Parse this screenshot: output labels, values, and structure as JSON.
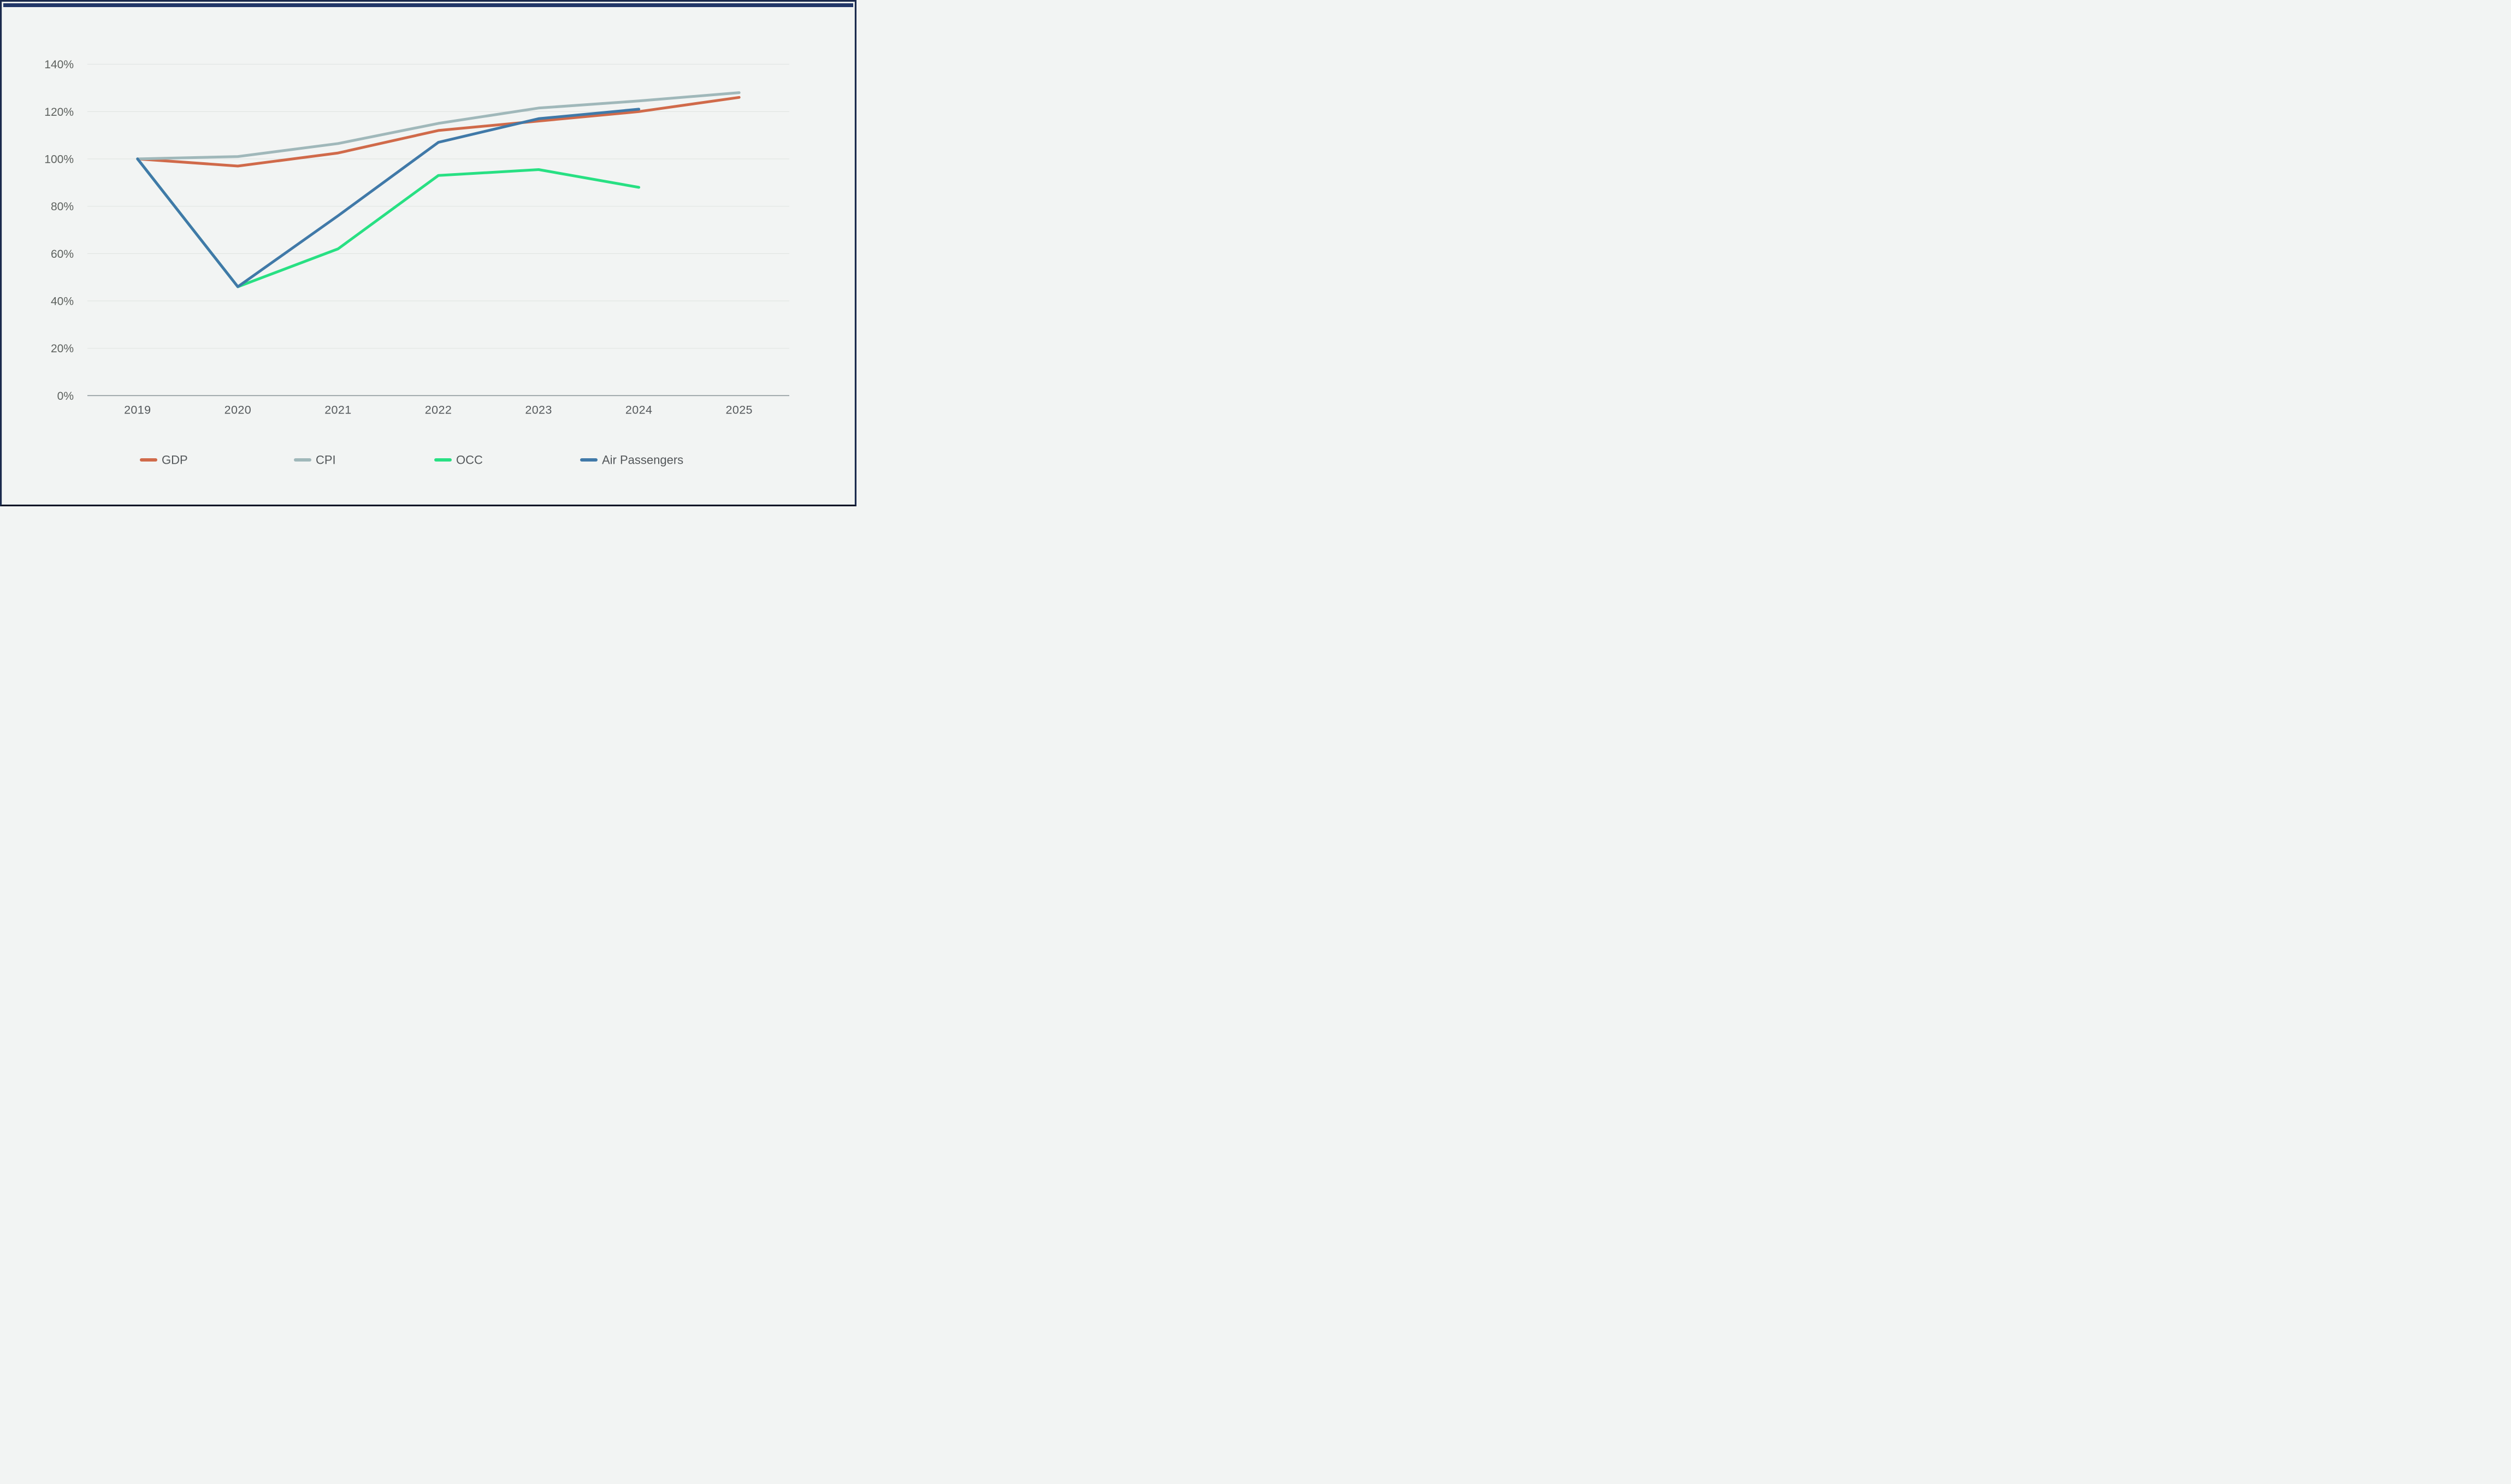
{
  "frame": {
    "top_bar_color": "#223768",
    "border_color": "#1b2a4d",
    "background_color": "#f2f4f3",
    "gridline_color": "#e0e4e2",
    "axis_line_color": "#8e989b"
  },
  "chart_data": {
    "type": "line",
    "title": "",
    "xlabel": "",
    "ylabel": "",
    "categories": [
      "2019",
      "2020",
      "2021",
      "2022",
      "2023",
      "2024",
      "2025"
    ],
    "series": [
      {
        "name": "GDP",
        "color": "#d06a4a",
        "values": [
          100,
          97,
          102.5,
          112,
          116,
          120,
          126
        ]
      },
      {
        "name": "CPI",
        "color": "#a0b8ba",
        "values": [
          100,
          101,
          106.5,
          115,
          121.5,
          124.5,
          128
        ]
      },
      {
        "name": "OCC",
        "color": "#28e083",
        "values": [
          100,
          46,
          62,
          93,
          95.5,
          88,
          null
        ]
      },
      {
        "name": "Air Passengers",
        "color": "#4079a8",
        "values": [
          100,
          46,
          76,
          107,
          117,
          121,
          null
        ]
      }
    ],
    "y_ticks": [
      0,
      20,
      40,
      60,
      80,
      100,
      120,
      140
    ],
    "y_tick_suffix": "%",
    "ylim": [
      0,
      140
    ],
    "grid": true,
    "legend_position": "bottom"
  }
}
